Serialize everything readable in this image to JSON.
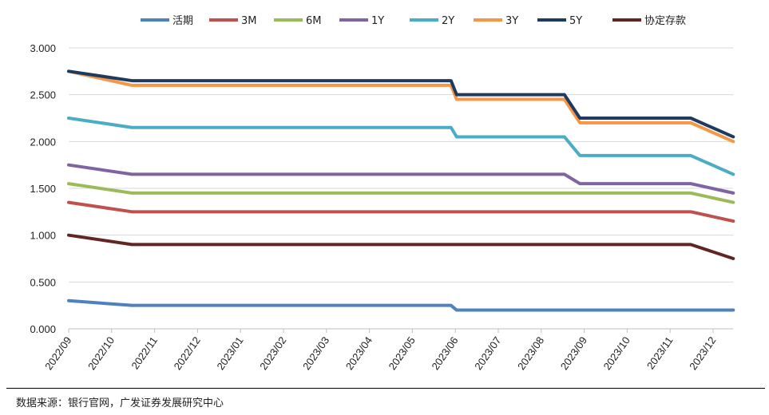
{
  "chart_data": {
    "type": "line",
    "title": "",
    "xlabel": "",
    "ylabel": "",
    "ylim": [
      0,
      3
    ],
    "yticks": [
      "0.000",
      "0.500",
      "1.000",
      "1.500",
      "2.000",
      "2.500",
      "3.000"
    ],
    "xticks": [
      "2022/09",
      "2022/10",
      "2022/11",
      "2022/12",
      "2023/01",
      "2023/02",
      "2023/03",
      "2023/04",
      "2023/05",
      "2023/06",
      "2023/07",
      "2023/08",
      "2023/09",
      "2023/10",
      "2023/11",
      "2023/12"
    ],
    "xlim": [
      0,
      15.5
    ],
    "grid": true,
    "legend": "top",
    "x_note": "x in months since 2022/09",
    "series": [
      {
        "name": "活期",
        "color": "#4f81bd",
        "points": [
          [
            0,
            0.3
          ],
          [
            1.47,
            0.25
          ],
          [
            8.9,
            0.25
          ],
          [
            9.03,
            0.2
          ],
          [
            15.47,
            0.2
          ]
        ]
      },
      {
        "name": "3M",
        "color": "#c0504d",
        "points": [
          [
            0,
            1.35
          ],
          [
            1.47,
            1.25
          ],
          [
            14.48,
            1.25
          ],
          [
            15.47,
            1.15
          ]
        ]
      },
      {
        "name": "6M",
        "color": "#9bbb59",
        "points": [
          [
            0,
            1.55
          ],
          [
            1.47,
            1.45
          ],
          [
            14.48,
            1.45
          ],
          [
            15.47,
            1.35
          ]
        ]
      },
      {
        "name": "1Y",
        "color": "#8064a2",
        "points": [
          [
            0,
            1.75
          ],
          [
            1.47,
            1.65
          ],
          [
            11.54,
            1.65
          ],
          [
            11.9,
            1.55
          ],
          [
            14.48,
            1.55
          ],
          [
            15.47,
            1.45
          ]
        ]
      },
      {
        "name": "2Y",
        "color": "#4bacc6",
        "points": [
          [
            0,
            2.25
          ],
          [
            1.47,
            2.15
          ],
          [
            8.9,
            2.15
          ],
          [
            9.03,
            2.05
          ],
          [
            11.54,
            2.05
          ],
          [
            11.9,
            1.85
          ],
          [
            14.48,
            1.85
          ],
          [
            15.47,
            1.65
          ]
        ]
      },
      {
        "name": "3Y",
        "color": "#f79646",
        "points": [
          [
            0,
            2.75
          ],
          [
            1.47,
            2.6
          ],
          [
            8.9,
            2.6
          ],
          [
            9.03,
            2.45
          ],
          [
            11.54,
            2.45
          ],
          [
            11.9,
            2.2
          ],
          [
            14.48,
            2.2
          ],
          [
            15.47,
            2.0
          ]
        ]
      },
      {
        "name": "5Y",
        "color": "#1f3a5f",
        "points": [
          [
            0,
            2.75
          ],
          [
            1.47,
            2.65
          ],
          [
            8.9,
            2.65
          ],
          [
            9.03,
            2.5
          ],
          [
            11.54,
            2.5
          ],
          [
            11.9,
            2.25
          ],
          [
            14.48,
            2.25
          ],
          [
            15.47,
            2.05
          ]
        ]
      },
      {
        "name": "协定存款",
        "color": "#632523",
        "points": [
          [
            0,
            1.0
          ],
          [
            1.47,
            0.9
          ],
          [
            14.48,
            0.9
          ],
          [
            15.47,
            0.75
          ]
        ]
      }
    ]
  },
  "source": "数据来源：银行官网，广发证券发展研究中心"
}
